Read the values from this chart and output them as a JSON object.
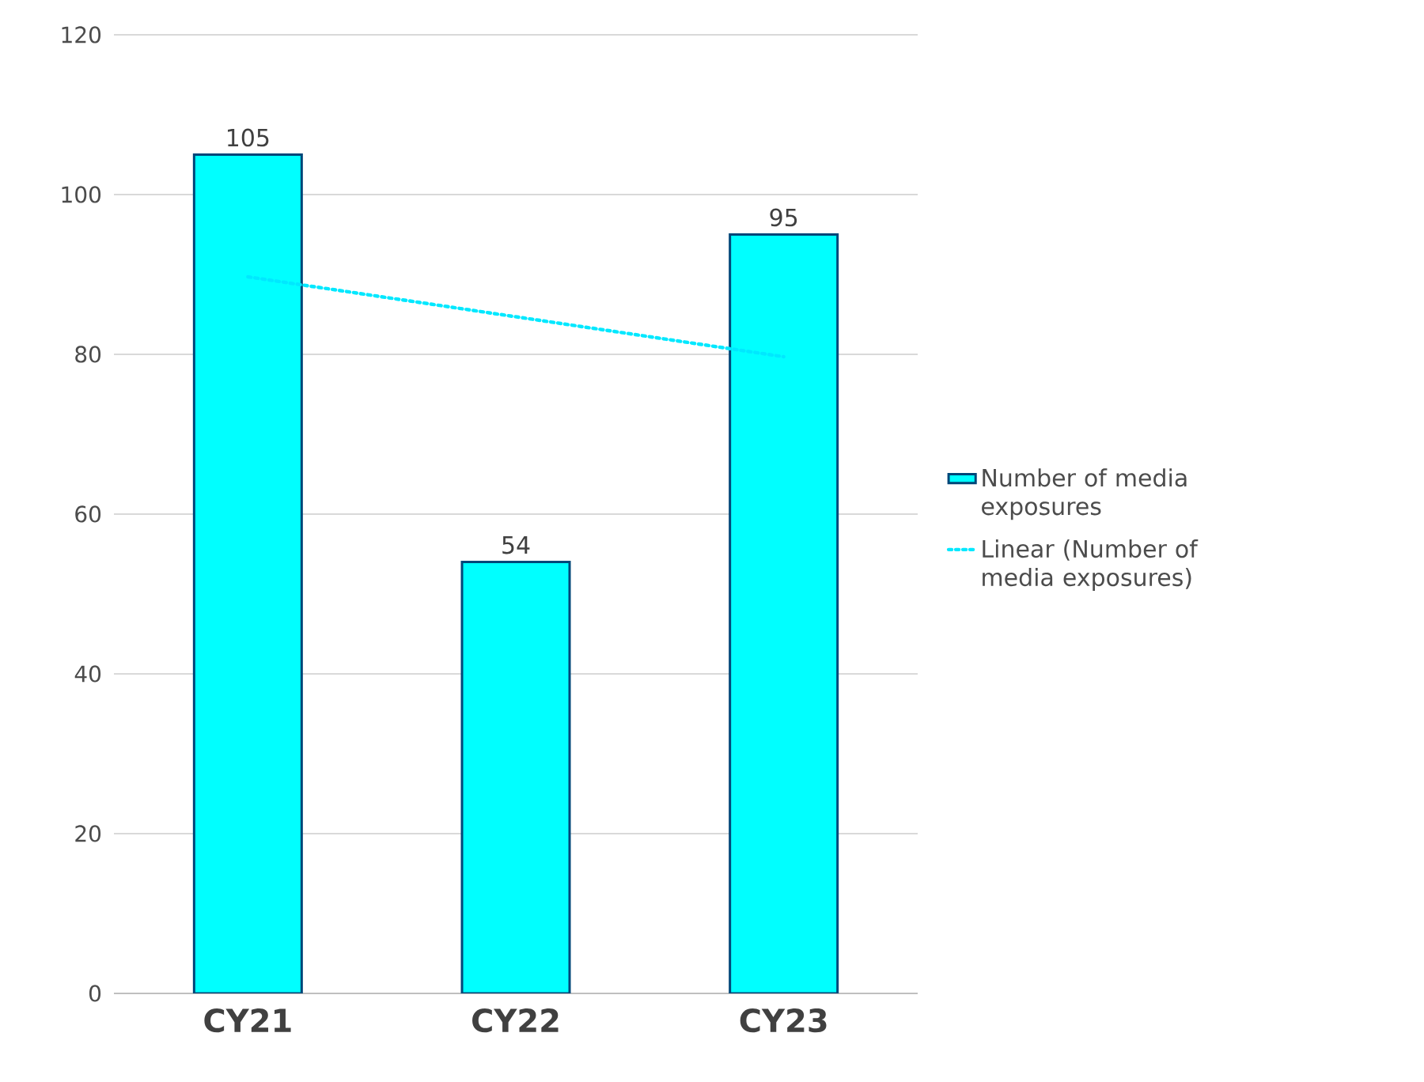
{
  "chart_data": {
    "type": "bar",
    "categories": [
      "CY21",
      "CY22",
      "CY23"
    ],
    "series": [
      {
        "name": "Number of media exposures",
        "color": "#00ffff",
        "values": [
          105,
          54,
          95
        ],
        "value_labels": [
          "105",
          "54",
          "95"
        ]
      },
      {
        "type": "line",
        "name": "Linear (Number of media exposures)",
        "color": "#00e8ff",
        "line_style": "dotted",
        "x": [
          "CY21",
          "CY23"
        ],
        "values": [
          89.7,
          79.7
        ]
      }
    ],
    "ylim": [
      0,
      120
    ],
    "yticks": [
      0,
      20,
      40,
      60,
      80,
      100,
      120
    ],
    "grid": "y",
    "legend": "right"
  }
}
